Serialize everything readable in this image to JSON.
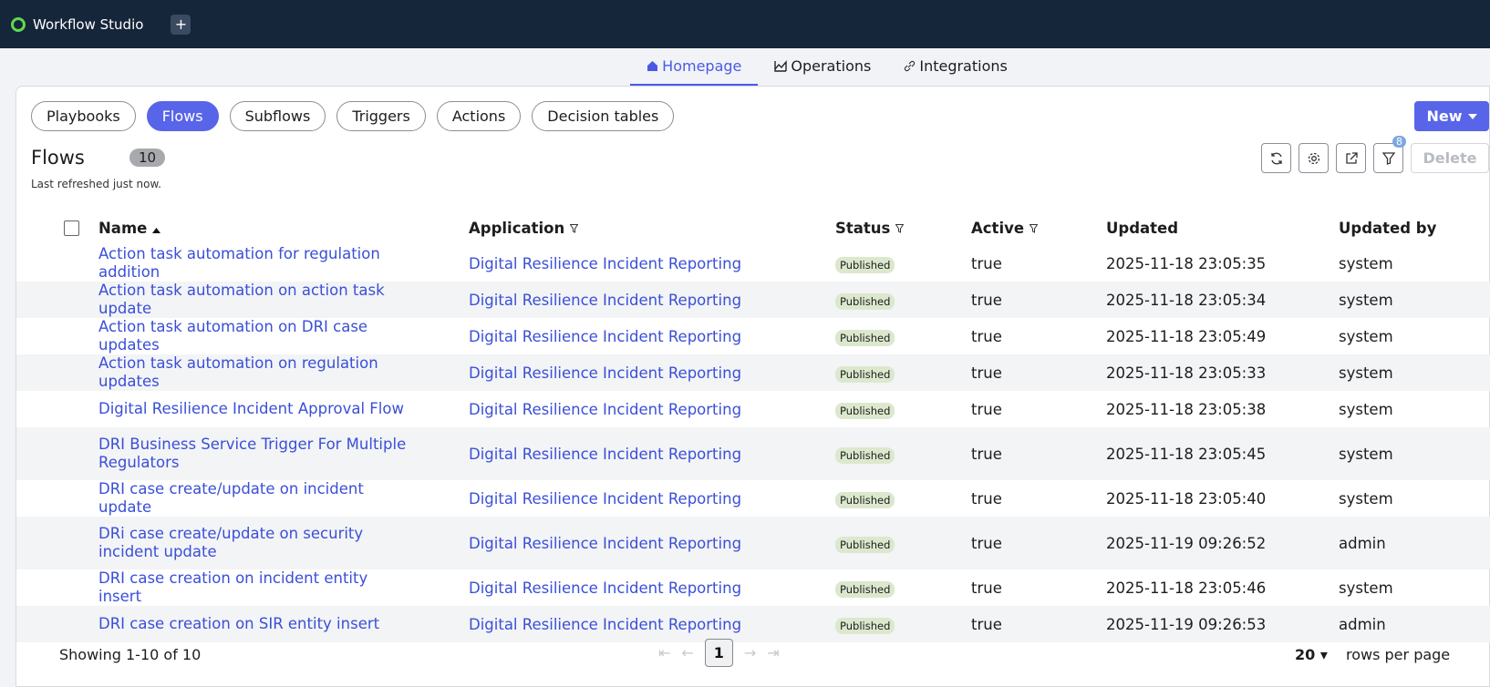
{
  "app": {
    "title": "Workflow Studio",
    "add": "+"
  },
  "tabs": [
    "Homepage",
    "Operations",
    "Integrations"
  ],
  "filters": [
    "Playbooks",
    "Flows",
    "Subflows",
    "Triggers",
    "Actions",
    "Decision tables"
  ],
  "new_button": "New",
  "list": {
    "title": "Flows",
    "count": "10",
    "refreshed": "Last refreshed just now.",
    "filter_badge": "8",
    "delete": "Delete"
  },
  "table": {
    "columns": [
      "Name",
      "Application",
      "Status",
      "Active",
      "Updated",
      "Updated by"
    ],
    "rows": [
      [
        "Action task automation for regulation addition",
        "Digital Resilience Incident Reporting",
        "Published",
        "true",
        "2025-11-18 23:05:35",
        "system"
      ],
      [
        "Action task automation on action task update",
        "Digital Resilience Incident Reporting",
        "Published",
        "true",
        "2025-11-18 23:05:34",
        "system"
      ],
      [
        "Action task automation on DRI case updates",
        "Digital Resilience Incident Reporting",
        "Published",
        "true",
        "2025-11-18 23:05:49",
        "system"
      ],
      [
        "Action task automation on regulation updates",
        "Digital Resilience Incident Reporting",
        "Published",
        "true",
        "2025-11-18 23:05:33",
        "system"
      ],
      [
        "Digital Resilience Incident Approval Flow",
        "Digital Resilience Incident Reporting",
        "Published",
        "true",
        "2025-11-18 23:05:38",
        "system"
      ],
      [
        "DRI Business Service Trigger For Multiple Regulators",
        "Digital Resilience Incident Reporting",
        "Published",
        "true",
        "2025-11-18 23:05:45",
        "system"
      ],
      [
        "DRI case create/update on incident update",
        "Digital Resilience Incident Reporting",
        "Published",
        "true",
        "2025-11-18 23:05:40",
        "system"
      ],
      [
        "DRi case create/update on security incident update",
        "Digital Resilience Incident Reporting",
        "Published",
        "true",
        "2025-11-19 09:26:52",
        "admin"
      ],
      [
        "DRI case creation on incident entity insert",
        "Digital Resilience Incident Reporting",
        "Published",
        "true",
        "2025-11-18 23:05:46",
        "system"
      ],
      [
        "DRI case creation on SIR entity insert",
        "Digital Resilience Incident Reporting",
        "Published",
        "true",
        "2025-11-19 09:26:53",
        "admin"
      ]
    ]
  },
  "footer": {
    "showing": "Showing 1-10 of 10",
    "page": "1",
    "rows_per_page_value": "20",
    "rows_per_page": "rows per page"
  }
}
